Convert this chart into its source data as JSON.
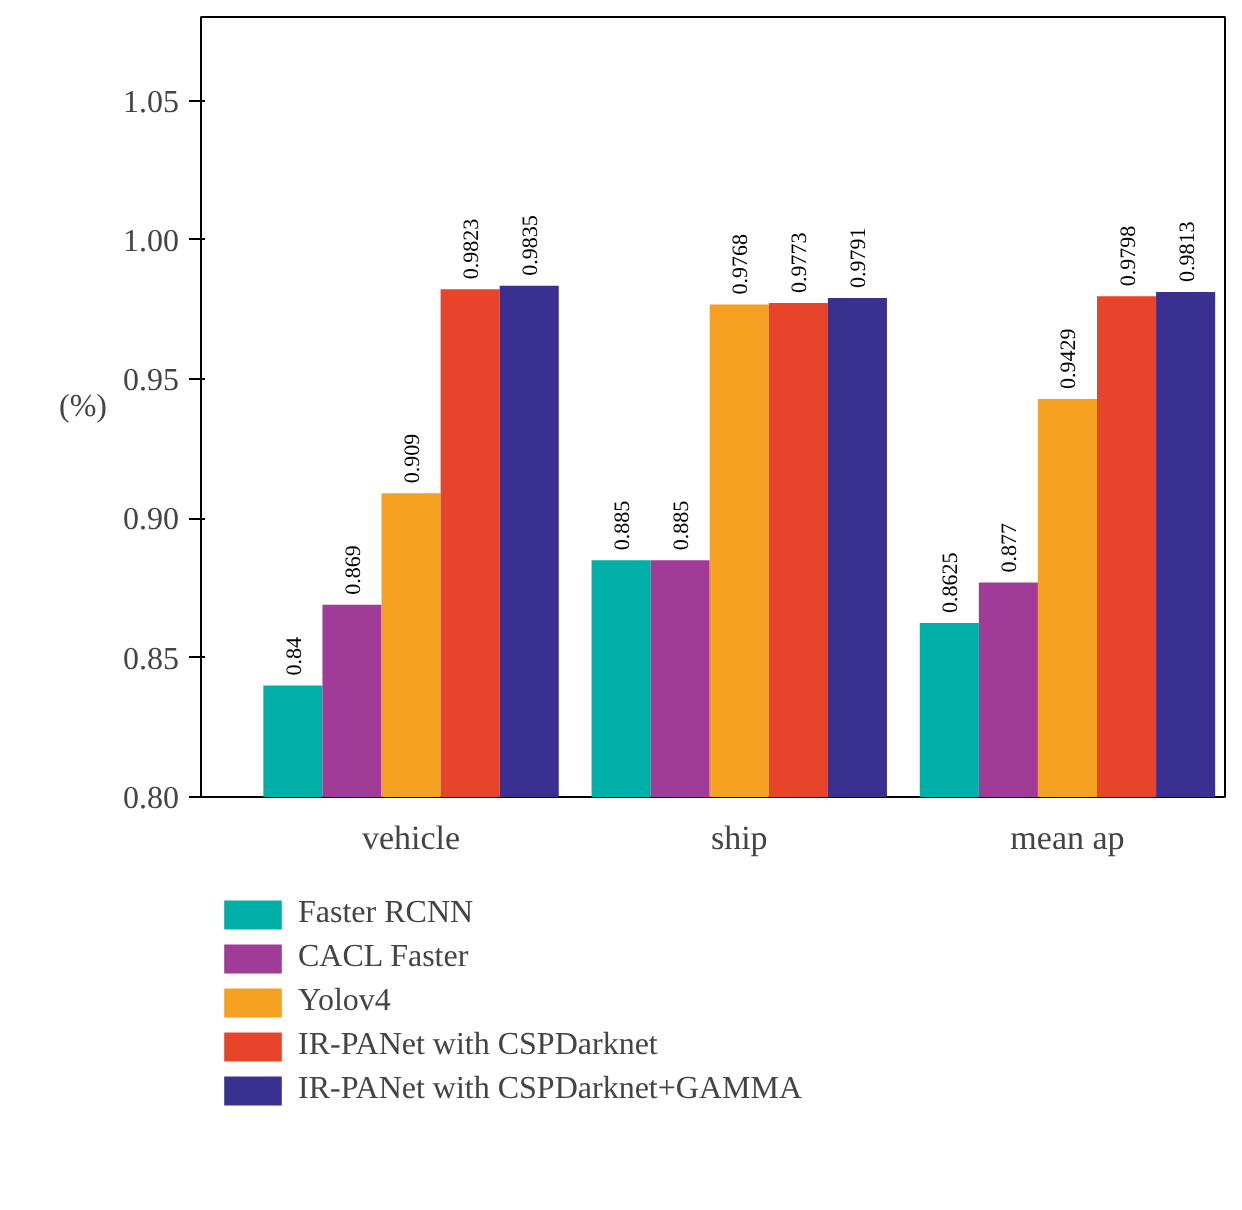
{
  "chart_data": {
    "type": "bar",
    "categories": [
      "vehicle",
      "ship",
      "mean ap"
    ],
    "ylabel": "(%)",
    "ylim": [
      0.8,
      1.08
    ],
    "yticks": [
      {
        "value": 0.8,
        "label": "0.80"
      },
      0.85,
      {
        "value": 0.9,
        "label": "0.90"
      },
      0.95,
      {
        "value": 1.0,
        "label": "1.00"
      },
      1.05
    ],
    "data_labels": true,
    "legend": "bottom",
    "grid": false,
    "value_labels": [
      [
        "0.84",
        "0.869",
        "0.909",
        "0.9823",
        "0.9835"
      ],
      [
        "0.885",
        "0.885",
        "0.9768",
        "0.9773",
        "0.9791"
      ],
      [
        "0.8625",
        "0.877",
        "0.9429",
        "0.9798",
        "0.9813"
      ]
    ],
    "series": [
      {
        "name": "Faster RCNN",
        "color": "#00b0a8",
        "values": [
          0.84,
          0.885,
          0.8625
        ]
      },
      {
        "name": "CACL Faster",
        "color": "#a03c98",
        "values": [
          0.869,
          0.885,
          0.877
        ]
      },
      {
        "name": "Yolov4",
        "color": "#f5a020",
        "values": [
          0.909,
          0.9768,
          0.9429
        ]
      },
      {
        "name": "IR-PANet with CSPDarknet",
        "color": "#e8442a",
        "values": [
          0.9823,
          0.9773,
          0.9798
        ]
      },
      {
        "name": "IR-PANet with CSPDarknet+GAMMA",
        "color": "#3a3090",
        "values": [
          0.9835,
          0.9791,
          0.9813
        ]
      }
    ]
  }
}
